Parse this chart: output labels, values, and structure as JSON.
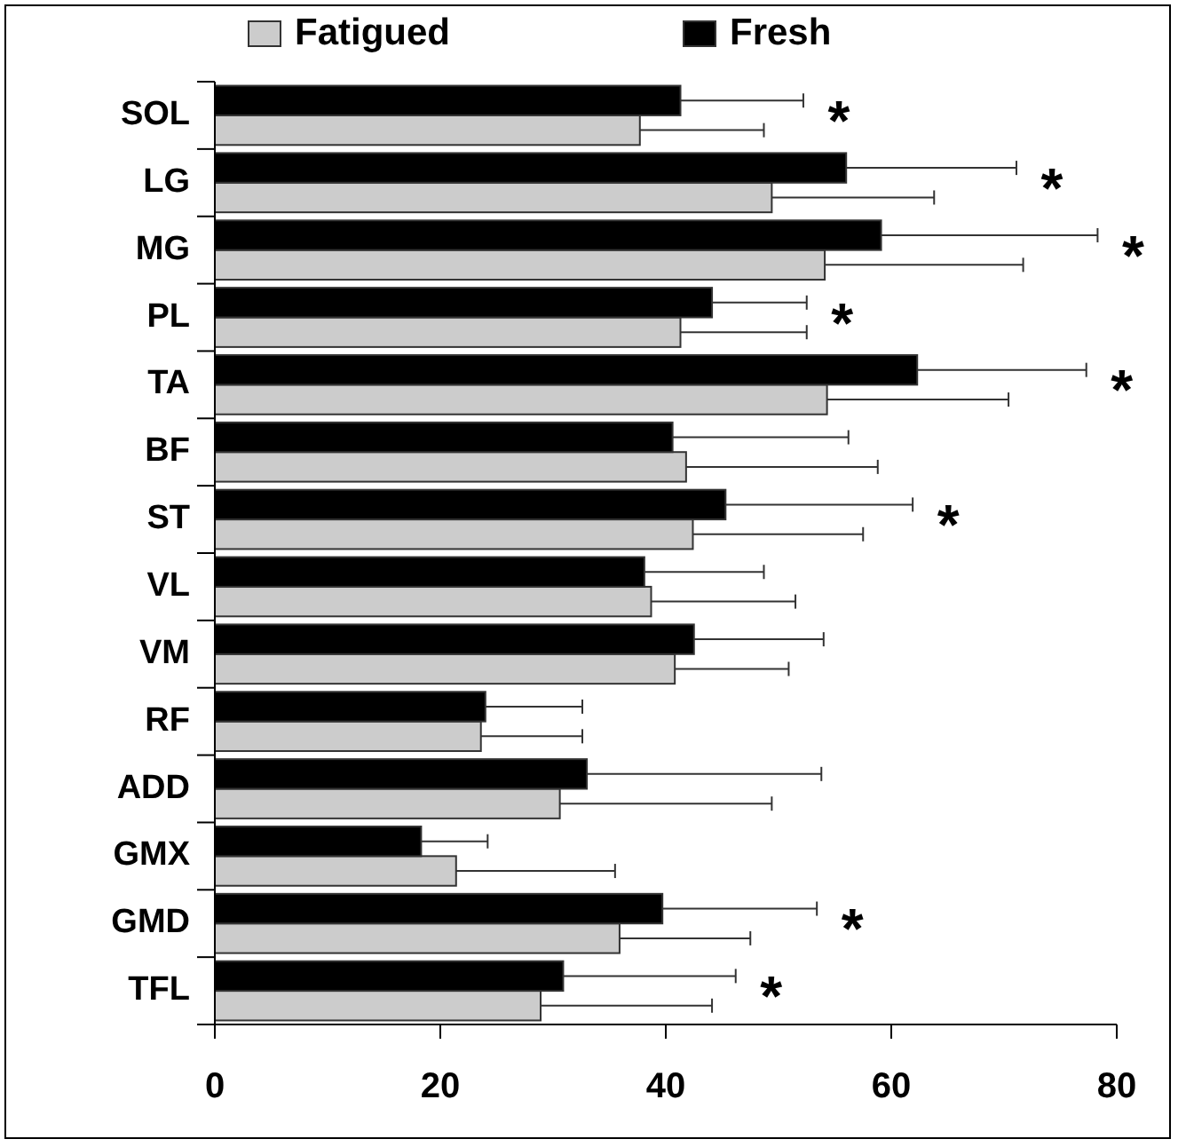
{
  "chart_data": {
    "type": "bar",
    "orientation": "horizontal",
    "categories": [
      "SOL",
      "LG",
      "MG",
      "PL",
      "TA",
      "BF",
      "ST",
      "VL",
      "VM",
      "RF",
      "ADD",
      "GMX",
      "GMD",
      "TFL"
    ],
    "series": [
      {
        "name": "Fatigued",
        "color": "#cccccc",
        "values": [
          37.7,
          49.4,
          54.1,
          41.3,
          54.3,
          41.8,
          42.4,
          38.7,
          40.8,
          23.6,
          30.6,
          21.4,
          35.9,
          28.9
        ],
        "errors": [
          [
            37.7,
            48.7
          ],
          [
            49.4,
            63.8
          ],
          [
            54.1,
            71.7
          ],
          [
            41.3,
            52.5
          ],
          [
            54.3,
            70.4
          ],
          [
            41.8,
            58.8
          ],
          [
            42.4,
            57.5
          ],
          [
            38.7,
            51.5
          ],
          [
            40.8,
            50.9
          ],
          [
            23.6,
            32.6
          ],
          [
            30.6,
            49.4
          ],
          [
            21.4,
            35.5
          ],
          [
            35.9,
            47.5
          ],
          [
            28.9,
            44.1
          ]
        ]
      },
      {
        "name": "Fresh",
        "color": "#000000",
        "values": [
          41.3,
          56.0,
          59.1,
          44.1,
          62.3,
          40.6,
          45.3,
          38.1,
          42.5,
          24.0,
          33.0,
          18.3,
          39.7,
          30.9
        ],
        "errors": [
          [
            41.3,
            52.2
          ],
          [
            56.0,
            71.1
          ],
          [
            59.1,
            78.3
          ],
          [
            44.1,
            52.5
          ],
          [
            62.3,
            77.3
          ],
          [
            40.6,
            56.2
          ],
          [
            45.3,
            61.9
          ],
          [
            38.1,
            48.7
          ],
          [
            42.5,
            54.0
          ],
          [
            24.0,
            32.6
          ],
          [
            33.0,
            53.8
          ],
          [
            18.3,
            24.2
          ],
          [
            39.7,
            53.4
          ],
          [
            30.9,
            46.2
          ]
        ]
      }
    ],
    "xlim": [
      0,
      80
    ],
    "xticks": [
      0,
      20,
      40,
      60,
      80
    ],
    "legend": "top",
    "annotations": [
      "*",
      "*",
      "*",
      "*",
      "*",
      "*",
      "*",
      "*"
    ]
  }
}
